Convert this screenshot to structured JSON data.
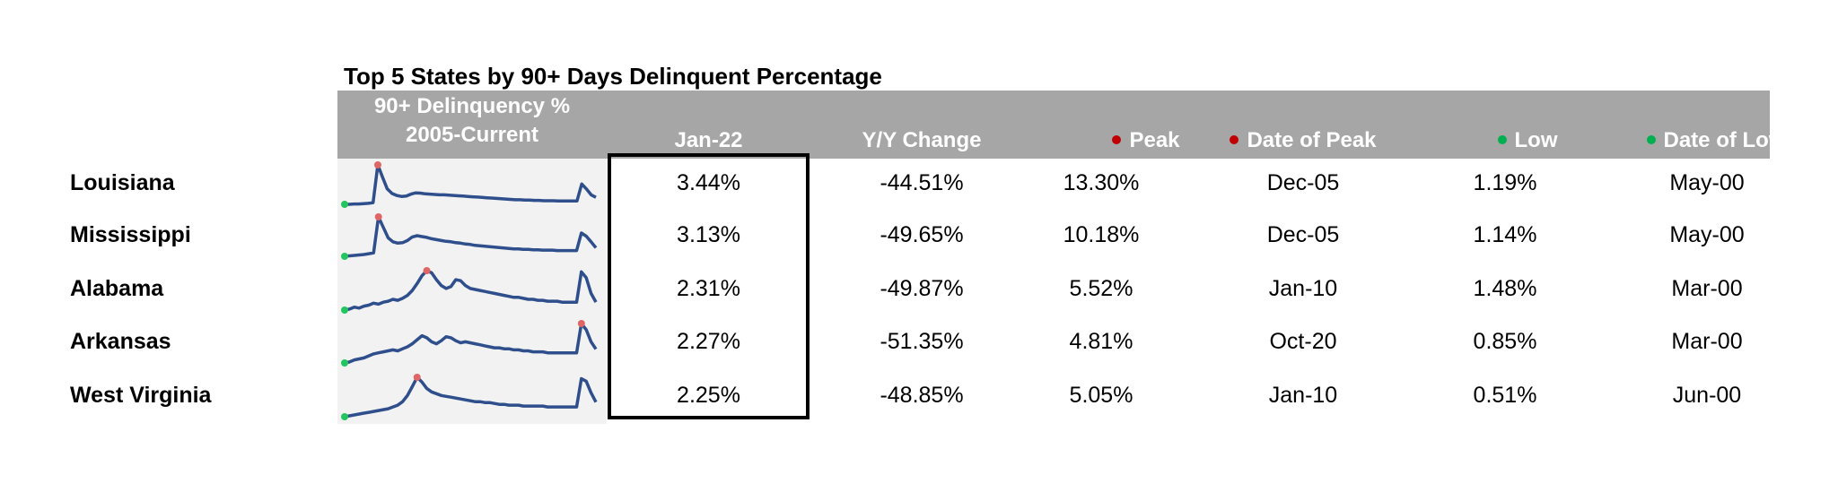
{
  "title": "Top 5 States by 90+ Days Delinquent Percentage",
  "header": {
    "spark_line1": "90+ Delinquency %",
    "spark_line2": "2005-Current",
    "current": "Jan-22",
    "yoy": "Y/Y Change",
    "peak": "Peak",
    "date_peak": "Date of Peak",
    "low": "Low",
    "date_low": "Date of Low"
  },
  "colors": {
    "header_bg": "#a6a6a6",
    "header_text": "#ffffff",
    "sparkline": "#2f4e8c",
    "peak_marker": "#c00000",
    "low_marker": "#00b050",
    "spark_bg": "#f2f2f2"
  },
  "chart_data": {
    "type": "table",
    "title": "Top 5 States by 90+ Days Delinquent Percentage",
    "columns": [
      "90+ Delinquency % 2005-Current",
      "Jan-22",
      "Y/Y Change",
      "Peak",
      "Date of Peak",
      "Low",
      "Date of Low"
    ],
    "rows": [
      {
        "state": "Louisiana",
        "current": "3.44%",
        "yoy": "-44.51%",
        "peak": "13.30%",
        "date_peak": "Dec-05",
        "low": "1.19%",
        "date_low": "May-00",
        "spark": [
          1.3,
          1.3,
          1.4,
          1.4,
          1.5,
          1.6,
          1.8,
          13.3,
          9.5,
          6.0,
          4.6,
          4.0,
          3.7,
          3.8,
          4.4,
          4.8,
          4.7,
          4.5,
          4.4,
          4.3,
          4.2,
          4.2,
          4.1,
          4.0,
          3.9,
          3.8,
          3.7,
          3.6,
          3.5,
          3.4,
          3.3,
          3.2,
          3.1,
          3.0,
          2.9,
          2.8,
          2.7,
          2.7,
          2.6,
          2.6,
          2.5,
          2.5,
          2.4,
          2.4,
          2.4,
          2.3,
          2.3,
          2.3,
          2.3,
          2.3,
          7.5,
          6.0,
          4.2,
          3.44
        ]
      },
      {
        "state": "Mississippi",
        "current": "3.13%",
        "yoy": "-49.65%",
        "peak": "10.18%",
        "date_peak": "Dec-05",
        "low": "1.14%",
        "date_low": "May-00",
        "spark": [
          1.2,
          1.3,
          1.4,
          1.5,
          1.6,
          1.8,
          2.0,
          10.18,
          7.8,
          5.4,
          4.5,
          4.2,
          4.3,
          4.8,
          5.6,
          5.9,
          5.7,
          5.5,
          5.2,
          5.0,
          4.8,
          4.6,
          4.5,
          4.3,
          4.2,
          4.0,
          3.9,
          3.7,
          3.6,
          3.5,
          3.4,
          3.3,
          3.2,
          3.1,
          3.0,
          2.9,
          2.9,
          2.8,
          2.8,
          2.7,
          2.7,
          2.6,
          2.6,
          2.6,
          2.5,
          2.5,
          2.5,
          2.5,
          2.5,
          6.5,
          5.8,
          4.5,
          3.13
        ]
      },
      {
        "state": "Alabama",
        "current": "2.31%",
        "yoy": "-49.87%",
        "peak": "5.52%",
        "date_peak": "Jan-10",
        "low": "1.48%",
        "date_low": "Mar-00",
        "spark": [
          1.5,
          1.6,
          1.8,
          1.7,
          1.9,
          2.0,
          2.2,
          2.1,
          2.3,
          2.4,
          2.6,
          2.5,
          2.7,
          3.0,
          3.5,
          4.2,
          5.0,
          5.52,
          5.3,
          4.6,
          4.0,
          3.7,
          3.9,
          4.6,
          4.5,
          4.0,
          3.7,
          3.6,
          3.5,
          3.4,
          3.3,
          3.2,
          3.1,
          3.0,
          2.9,
          2.8,
          2.8,
          2.7,
          2.6,
          2.6,
          2.5,
          2.5,
          2.4,
          2.4,
          2.4,
          2.3,
          2.3,
          2.3,
          2.3,
          5.4,
          4.8,
          3.2,
          2.31
        ]
      },
      {
        "state": "Arkansas",
        "current": "2.27%",
        "yoy": "-51.35%",
        "peak": "4.81%",
        "date_peak": "Oct-20",
        "low": "0.85%",
        "date_low": "Mar-00",
        "spark": [
          0.9,
          1.0,
          1.2,
          1.3,
          1.4,
          1.6,
          1.8,
          1.9,
          2.0,
          2.1,
          2.2,
          2.1,
          2.3,
          2.5,
          2.8,
          3.2,
          3.6,
          3.4,
          3.0,
          2.8,
          3.1,
          3.5,
          3.4,
          3.1,
          2.9,
          3.0,
          2.9,
          2.8,
          2.7,
          2.6,
          2.5,
          2.4,
          2.4,
          2.3,
          2.3,
          2.2,
          2.2,
          2.1,
          2.1,
          2.0,
          2.0,
          2.0,
          1.9,
          1.9,
          1.9,
          1.9,
          1.9,
          1.9,
          1.9,
          4.81,
          4.2,
          3.0,
          2.27
        ]
      },
      {
        "state": "West Virginia",
        "current": "2.25%",
        "yoy": "-48.85%",
        "peak": "5.05%",
        "date_peak": "Jan-10",
        "low": "0.51%",
        "date_low": "Jun-00",
        "spark": [
          0.6,
          0.7,
          0.8,
          0.9,
          1.0,
          1.1,
          1.2,
          1.3,
          1.4,
          1.5,
          1.7,
          1.9,
          2.3,
          3.0,
          4.0,
          5.05,
          4.5,
          3.8,
          3.4,
          3.2,
          3.0,
          2.9,
          2.8,
          2.7,
          2.6,
          2.5,
          2.4,
          2.3,
          2.3,
          2.2,
          2.2,
          2.1,
          2.0,
          2.0,
          1.9,
          1.9,
          1.9,
          1.8,
          1.8,
          1.8,
          1.8,
          1.8,
          1.7,
          1.7,
          1.7,
          1.7,
          1.7,
          1.7,
          1.7,
          4.9,
          4.6,
          3.3,
          2.25
        ]
      }
    ]
  }
}
